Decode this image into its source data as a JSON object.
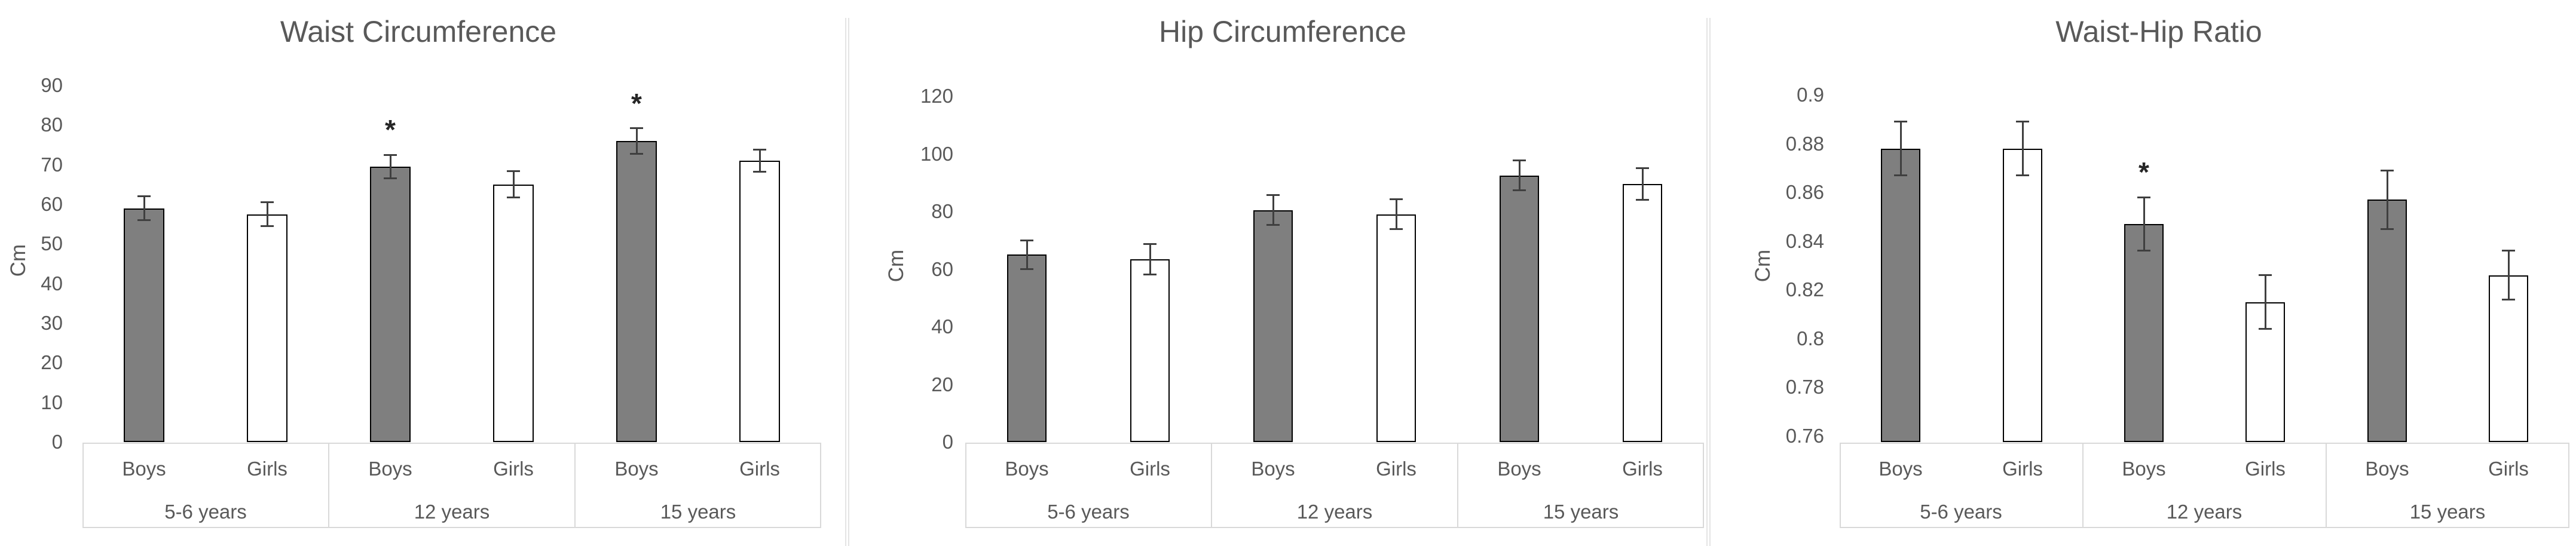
{
  "figure": {
    "background": "#ffffff",
    "significance_marker": "*",
    "panel_count": 3
  },
  "colors": {
    "boys_bar_fill": "#7f7f7f",
    "girls_bar_fill": "#ffffff",
    "bar_outline": "#000000",
    "error_bar": "#3f3f3f",
    "text": "#595959",
    "table_border": "#d9d9d9",
    "panel_divider": "#e4e4e4",
    "background": "#ffffff"
  },
  "chart_data": [
    {
      "type": "bar",
      "title": "Waist Circumference",
      "ylabel": "Cm",
      "xlabel": "",
      "ylim": [
        0,
        90
      ],
      "yticks": [
        0,
        10,
        20,
        30,
        40,
        50,
        60,
        70,
        80,
        90
      ],
      "ytick_labels": [
        "0",
        "10",
        "20",
        "30",
        "40",
        "50",
        "60",
        "70",
        "80",
        "90"
      ],
      "grid": false,
      "legend": false,
      "groups": [
        {
          "label": "5-6 years",
          "bars": [
            {
              "category": "Boys",
              "value": 59,
              "error": 3,
              "significant": false
            },
            {
              "category": "Girls",
              "value": 57.5,
              "error": 3,
              "significant": false
            }
          ]
        },
        {
          "label": "12 years",
          "bars": [
            {
              "category": "Boys",
              "value": 69.5,
              "error": 3,
              "significant": true
            },
            {
              "category": "Girls",
              "value": 65,
              "error": 3.3,
              "significant": false
            }
          ]
        },
        {
          "label": "15 years",
          "bars": [
            {
              "category": "Boys",
              "value": 76,
              "error": 3.2,
              "significant": true
            },
            {
              "category": "Girls",
              "value": 71,
              "error": 2.8,
              "significant": false
            }
          ]
        }
      ]
    },
    {
      "type": "bar",
      "title": "Hip Circumference",
      "ylabel": "Cm",
      "xlabel": "",
      "ylim": [
        0,
        120
      ],
      "yticks": [
        0,
        20,
        40,
        60,
        80,
        100,
        120
      ],
      "ytick_labels": [
        "0",
        "20",
        "40",
        "60",
        "80",
        "100",
        "120"
      ],
      "grid": false,
      "legend": false,
      "groups": [
        {
          "label": "5-6 years",
          "bars": [
            {
              "category": "Boys",
              "value": 65,
              "error": 5,
              "significant": false
            },
            {
              "category": "Girls",
              "value": 63.5,
              "error": 5.3,
              "significant": false
            }
          ]
        },
        {
          "label": "12 years",
          "bars": [
            {
              "category": "Boys",
              "value": 80.5,
              "error": 5.2,
              "significant": false
            },
            {
              "category": "Girls",
              "value": 79,
              "error": 5.2,
              "significant": false
            }
          ]
        },
        {
          "label": "15 years",
          "bars": [
            {
              "category": "Boys",
              "value": 92.5,
              "error": 5.2,
              "significant": false
            },
            {
              "category": "Girls",
              "value": 89.5,
              "error": 5.5,
              "significant": false
            }
          ]
        }
      ]
    },
    {
      "type": "bar",
      "title": "Waist-Hip Ratio",
      "ylabel": "Cm",
      "xlabel": "",
      "ylim": [
        0.76,
        0.9
      ],
      "yticks": [
        0.76,
        0.78,
        0.8,
        0.82,
        0.84,
        0.86,
        0.88,
        0.9
      ],
      "ytick_labels": [
        "0.76",
        "0.78",
        "0.8",
        "0.82",
        "0.84",
        "0.86",
        "0.88",
        "0.9"
      ],
      "grid": false,
      "legend": false,
      "groups": [
        {
          "label": "5-6 years",
          "bars": [
            {
              "category": "Boys",
              "value": 0.878,
              "error": 0.011,
              "significant": false
            },
            {
              "category": "Girls",
              "value": 0.878,
              "error": 0.011,
              "significant": false
            }
          ]
        },
        {
          "label": "12 years",
          "bars": [
            {
              "category": "Boys",
              "value": 0.847,
              "error": 0.011,
              "significant": true
            },
            {
              "category": "Girls",
              "value": 0.815,
              "error": 0.011,
              "significant": false
            }
          ]
        },
        {
          "label": "15 years",
          "bars": [
            {
              "category": "Boys",
              "value": 0.857,
              "error": 0.012,
              "significant": false
            },
            {
              "category": "Girls",
              "value": 0.826,
              "error": 0.01,
              "significant": false
            }
          ]
        }
      ]
    }
  ]
}
